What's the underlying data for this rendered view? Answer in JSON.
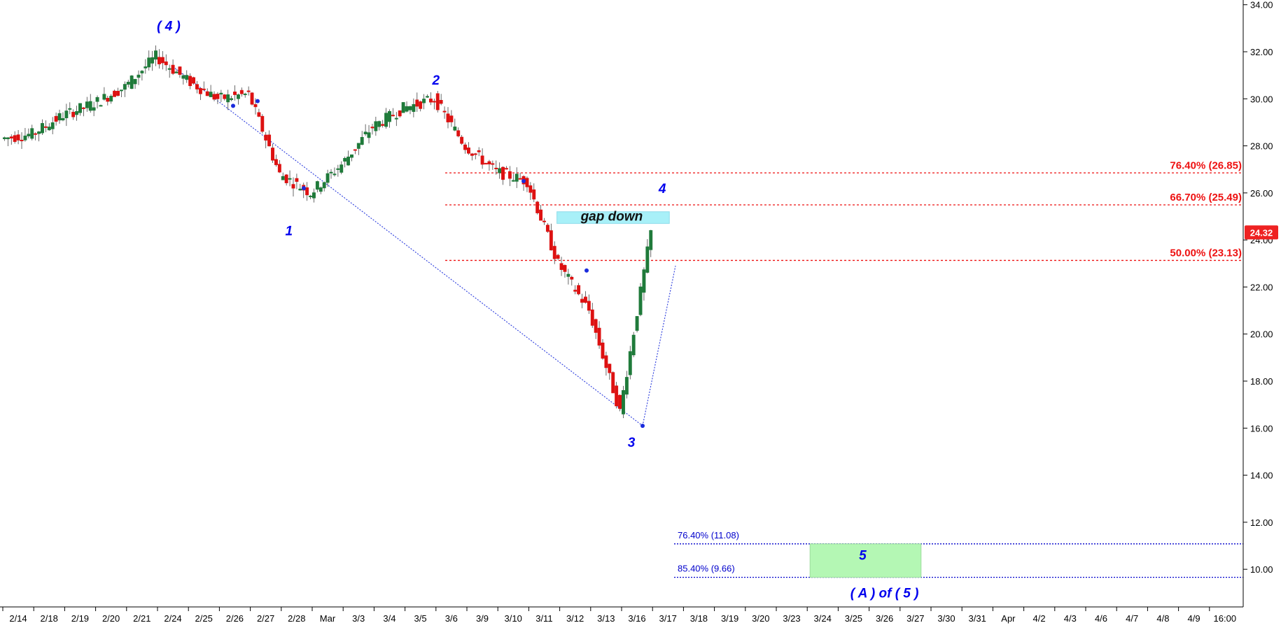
{
  "chart_data": {
    "type": "candlestick",
    "y_axis": {
      "min": 8.4,
      "max": 34.2,
      "ticks": [
        "34.00",
        "32.00",
        "30.00",
        "28.00",
        "26.00",
        "24.00",
        "22.00",
        "20.00",
        "18.00",
        "16.00",
        "14.00",
        "12.00",
        "10.00"
      ],
      "position": "right"
    },
    "x_axis": {
      "labels": [
        "2/14",
        "2/18",
        "2/19",
        "2/20",
        "2/21",
        "2/24",
        "2/25",
        "2/26",
        "2/27",
        "2/28",
        "Mar",
        "3/3",
        "3/4",
        "3/5",
        "3/6",
        "3/9",
        "3/10",
        "3/11",
        "3/12",
        "3/13",
        "3/16",
        "3/17",
        "3/18",
        "3/19",
        "3/20",
        "3/23",
        "3/24",
        "3/25",
        "3/26",
        "3/27",
        "3/30",
        "3/31",
        "Apr",
        "4/2",
        "4/3",
        "4/6",
        "4/7",
        "4/8",
        "4/9",
        "16:00"
      ]
    },
    "last_price": "24.32",
    "colors": {
      "up": "#1f7a3a",
      "down": "#dd1111",
      "fib_red": "#ee1111",
      "fib_blue": "#0000cc",
      "wave_label": "#0000ee",
      "gap_box": "#a8f0f8",
      "target_box": "#b4f7b4",
      "last_price_bg": "#ee2222"
    },
    "price_path": [
      {
        "x": "2/14",
        "y": 28.3
      },
      {
        "x": "2/18",
        "y": 28.5
      },
      {
        "x": "2/19",
        "y": 29.3
      },
      {
        "x": "2/20",
        "y": 29.8
      },
      {
        "x": "2/21",
        "y": 30.5
      },
      {
        "x": "2/24",
        "y": 31.8
      },
      {
        "x": "2/25",
        "y": 30.8
      },
      {
        "x": "2/26",
        "y": 30.0
      },
      {
        "x": "2/27",
        "y": 30.2
      },
      {
        "x": "2/28",
        "y": 26.8
      },
      {
        "x": "Mar",
        "y": 26.0
      },
      {
        "x": "3/3",
        "y": 27.2
      },
      {
        "x": "3/4",
        "y": 28.8
      },
      {
        "x": "3/5",
        "y": 29.6
      },
      {
        "x": "3/6",
        "y": 30.0
      },
      {
        "x": "3/9",
        "y": 28.0
      },
      {
        "x": "3/10",
        "y": 26.9
      },
      {
        "x": "3/11",
        "y": 26.5
      },
      {
        "x": "3/12",
        "y": 23.0
      },
      {
        "x": "3/13",
        "y": 21.0
      },
      {
        "x": "3/16",
        "y": 16.7
      },
      {
        "x": "3/17",
        "y": 24.32
      }
    ],
    "fib_levels": [
      {
        "label": "76.40% (26.85)",
        "value": 26.85,
        "color": "red"
      },
      {
        "label": "66.70% (25.49)",
        "value": 25.49,
        "color": "red"
      },
      {
        "label": "50.00% (23.13)",
        "value": 23.13,
        "color": "red"
      },
      {
        "label": "76.40% (11.08)",
        "value": 11.08,
        "color": "blue"
      },
      {
        "label": "85.40% (9.66)",
        "value": 9.66,
        "color": "blue"
      }
    ],
    "wave_labels": [
      {
        "text": "( 4 )",
        "x": "2/24",
        "y": 32.9
      },
      {
        "text": "1",
        "x": "2/28",
        "y": 24.2
      },
      {
        "text": "2",
        "x": "3/6",
        "y": 30.6
      },
      {
        "text": "3",
        "x": "3/16",
        "y": 15.2
      },
      {
        "text": "4",
        "x": "3/17",
        "y": 26.0
      },
      {
        "text": "5",
        "x": "3/25",
        "y": 10.4
      },
      {
        "text": "( A ) of ( 5 )",
        "x": "3/26",
        "y": 8.8
      }
    ],
    "annotations": [
      {
        "text": "gap down",
        "type": "box",
        "x_from": "3/12",
        "x_to": "3/17",
        "y_from": 24.7,
        "y_to": 25.2
      }
    ],
    "target_zone": {
      "x_from": "3/24",
      "x_to": "3/27",
      "y_from": 9.66,
      "y_to": 11.08,
      "label": "5"
    }
  }
}
